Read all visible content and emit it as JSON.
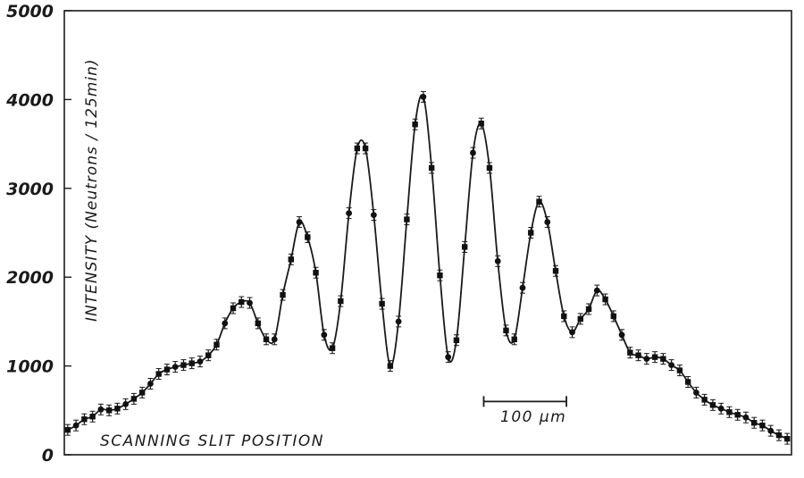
{
  "chart_data": {
    "type": "scatter",
    "title": "",
    "xlabel": "SCANNING SLIT POSITION",
    "ylabel": "INTENSITY (Neutrons / 125min)",
    "ylim": [
      0,
      5000
    ],
    "yticks": [
      "0",
      "1000",
      "2000",
      "3000",
      "4000",
      "5000"
    ],
    "grid": false,
    "legend": "none",
    "scale_bar_label": "100 μm",
    "scale_bar_length": 100,
    "scale_bar_y": 600,
    "scale_bar_x_start": 420,
    "xlim": [
      0,
      875
    ],
    "series": [
      {
        "values": [
          [
            2,
            280
          ],
          [
            12,
            330
          ],
          [
            22,
            400
          ],
          [
            32,
            430
          ],
          [
            42,
            510
          ],
          [
            52,
            500
          ],
          [
            62,
            520
          ],
          [
            72,
            570
          ],
          [
            82,
            630
          ],
          [
            92,
            700
          ],
          [
            102,
            800
          ],
          [
            112,
            910
          ],
          [
            122,
            960
          ],
          [
            132,
            990
          ],
          [
            142,
            1010
          ],
          [
            152,
            1030
          ],
          [
            162,
            1050
          ],
          [
            172,
            1120
          ],
          [
            182,
            1240
          ],
          [
            192,
            1480
          ],
          [
            202,
            1650
          ],
          [
            212,
            1720
          ],
          [
            222,
            1710
          ],
          [
            232,
            1480
          ],
          [
            242,
            1300
          ],
          [
            252,
            1300
          ],
          [
            262,
            1800
          ],
          [
            272,
            2200
          ],
          [
            282,
            2620
          ],
          [
            292,
            2450
          ],
          [
            302,
            2050
          ],
          [
            312,
            1350
          ],
          [
            322,
            1200
          ],
          [
            332,
            1730
          ],
          [
            342,
            2720
          ],
          [
            352,
            3450
          ],
          [
            362,
            3450
          ],
          [
            372,
            2700
          ],
          [
            382,
            1700
          ],
          [
            392,
            1000
          ],
          [
            402,
            1500
          ],
          [
            412,
            2650
          ],
          [
            422,
            3720
          ],
          [
            432,
            4030
          ],
          [
            442,
            3230
          ],
          [
            452,
            2020
          ],
          [
            462,
            1100
          ],
          [
            472,
            1290
          ],
          [
            482,
            2340
          ],
          [
            492,
            3400
          ],
          [
            502,
            3730
          ],
          [
            512,
            3230
          ],
          [
            522,
            2180
          ],
          [
            532,
            1400
          ],
          [
            542,
            1300
          ],
          [
            552,
            1880
          ],
          [
            562,
            2500
          ],
          [
            572,
            2850
          ],
          [
            582,
            2620
          ],
          [
            592,
            2070
          ],
          [
            602,
            1560
          ],
          [
            612,
            1380
          ],
          [
            622,
            1530
          ],
          [
            632,
            1640
          ],
          [
            642,
            1850
          ],
          [
            652,
            1750
          ],
          [
            662,
            1560
          ],
          [
            672,
            1350
          ],
          [
            682,
            1150
          ],
          [
            692,
            1120
          ],
          [
            702,
            1080
          ],
          [
            712,
            1100
          ],
          [
            722,
            1080
          ],
          [
            732,
            1010
          ],
          [
            742,
            950
          ],
          [
            752,
            820
          ],
          [
            762,
            700
          ],
          [
            772,
            620
          ],
          [
            782,
            560
          ],
          [
            792,
            520
          ],
          [
            802,
            480
          ],
          [
            812,
            450
          ],
          [
            822,
            420
          ],
          [
            832,
            360
          ],
          [
            842,
            330
          ],
          [
            852,
            270
          ],
          [
            862,
            220
          ],
          [
            872,
            180
          ]
        ]
      }
    ]
  }
}
